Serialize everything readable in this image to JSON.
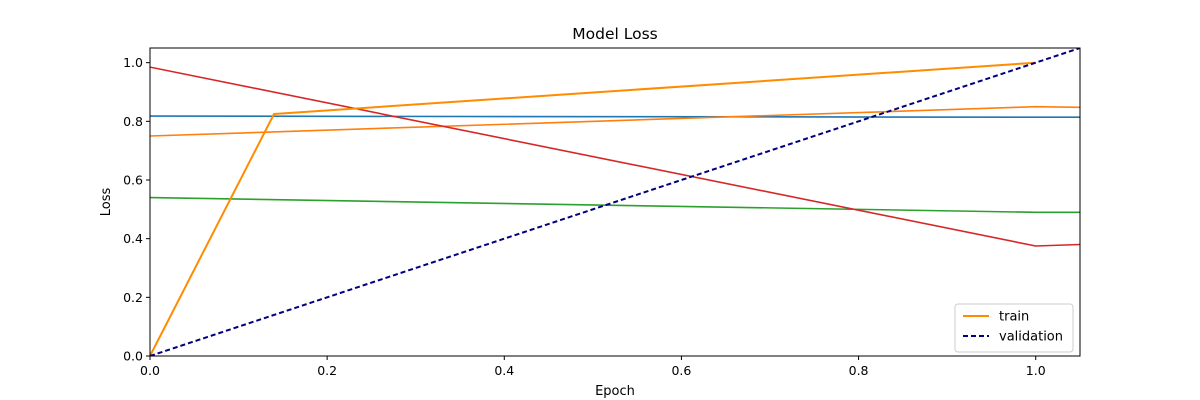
{
  "chart_data": {
    "type": "line",
    "title": "Model Loss",
    "xlabel": "Epoch",
    "ylabel": "Loss",
    "xlim": [
      0,
      1.05
    ],
    "ylim": [
      0,
      1.05
    ],
    "xticks": [
      "0.0",
      "0.2",
      "0.4",
      "0.6",
      "0.8",
      "1.0"
    ],
    "yticks": [
      "0.0",
      "0.2",
      "0.4",
      "0.6",
      "0.8",
      "1.0"
    ],
    "grid": false,
    "legend_position": "lower-right",
    "series": [
      {
        "name": "train",
        "color": "#ff8c00",
        "style": "solid",
        "emphasis": true,
        "x": [
          0.0,
          0.14,
          1.0
        ],
        "y": [
          0.0,
          0.825,
          1.0
        ]
      },
      {
        "name": "validation",
        "color": "#000080",
        "style": "dashed",
        "emphasis": true,
        "x": [
          0.0,
          1.05
        ],
        "y": [
          0.0,
          1.05
        ]
      },
      {
        "color": "#1f77b4",
        "style": "solid",
        "x": [
          0.0,
          1.0,
          1.05
        ],
        "y": [
          0.818,
          0.814,
          0.814
        ]
      },
      {
        "color": "#ff7f0e",
        "style": "solid",
        "x": [
          0.0,
          1.0,
          1.05
        ],
        "y": [
          0.75,
          0.85,
          0.848
        ]
      },
      {
        "color": "#2ca02c",
        "style": "solid",
        "x": [
          0.0,
          1.0,
          1.05
        ],
        "y": [
          0.54,
          0.49,
          0.49
        ]
      },
      {
        "color": "#d62728",
        "style": "solid",
        "x": [
          0.0,
          1.0,
          1.05
        ],
        "y": [
          0.985,
          0.375,
          0.38
        ]
      }
    ]
  }
}
